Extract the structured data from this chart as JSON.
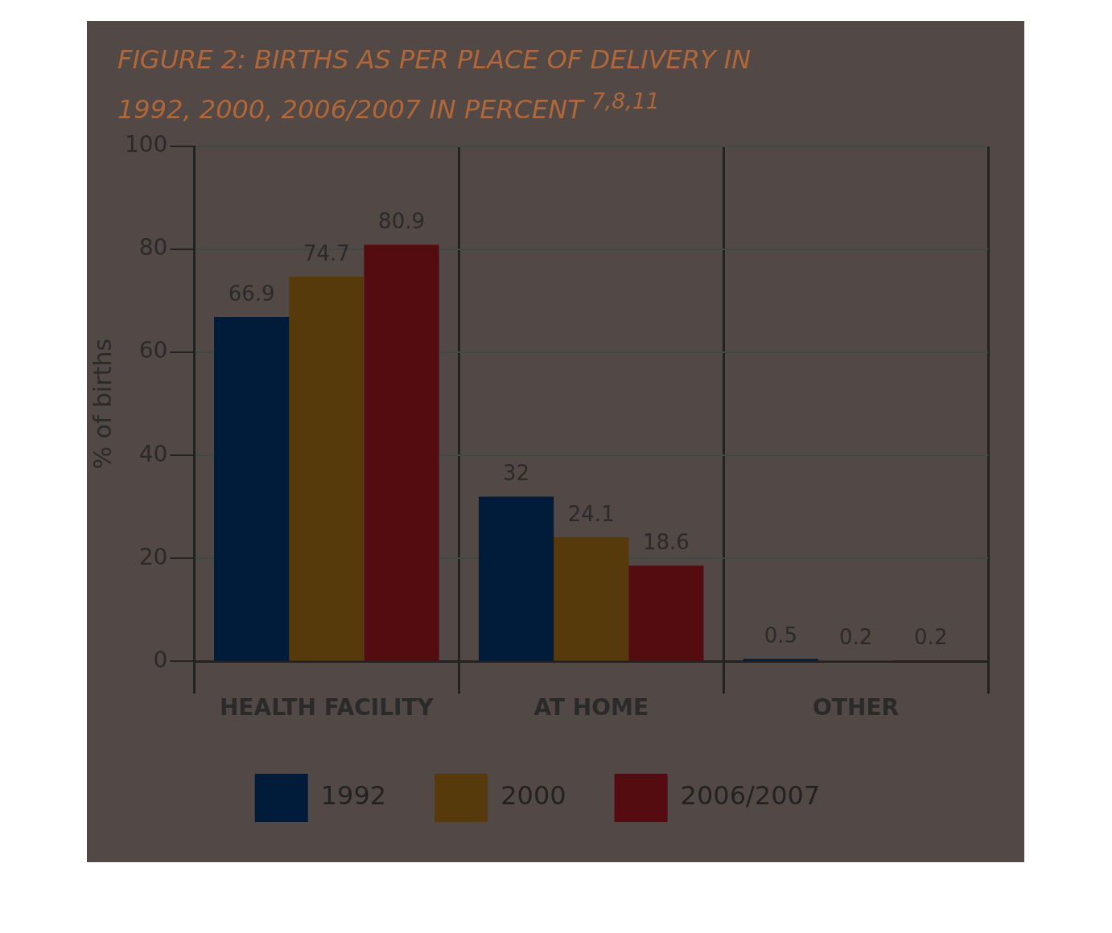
{
  "chart_data": {
    "type": "bar",
    "title": "FIGURE 2: BIRTHS AS PER PLACE OF DELIVERY IN 1992, 2000, 2006/2007 IN PERCENT $^{7,8,11}$",
    "ylabel": "% of births",
    "categories": [
      "HEALTH FACILITY",
      "AT HOME",
      "OTHER"
    ],
    "series": [
      {
        "name": "1992",
        "color": "#011b3a",
        "values": [
          66.9,
          32,
          0.5
        ]
      },
      {
        "name": "2000",
        "color": "#573a0b",
        "values": [
          74.7,
          24.1,
          0.2
        ]
      },
      {
        "name": "2006/2007",
        "color": "#540c10",
        "values": [
          80.9,
          18.6,
          0.2
        ]
      }
    ],
    "ylim": [
      0,
      100
    ],
    "yticks": [
      0,
      20,
      40,
      60,
      80,
      100
    ],
    "grid": true,
    "legend": "bottom",
    "data_labels": true
  }
}
